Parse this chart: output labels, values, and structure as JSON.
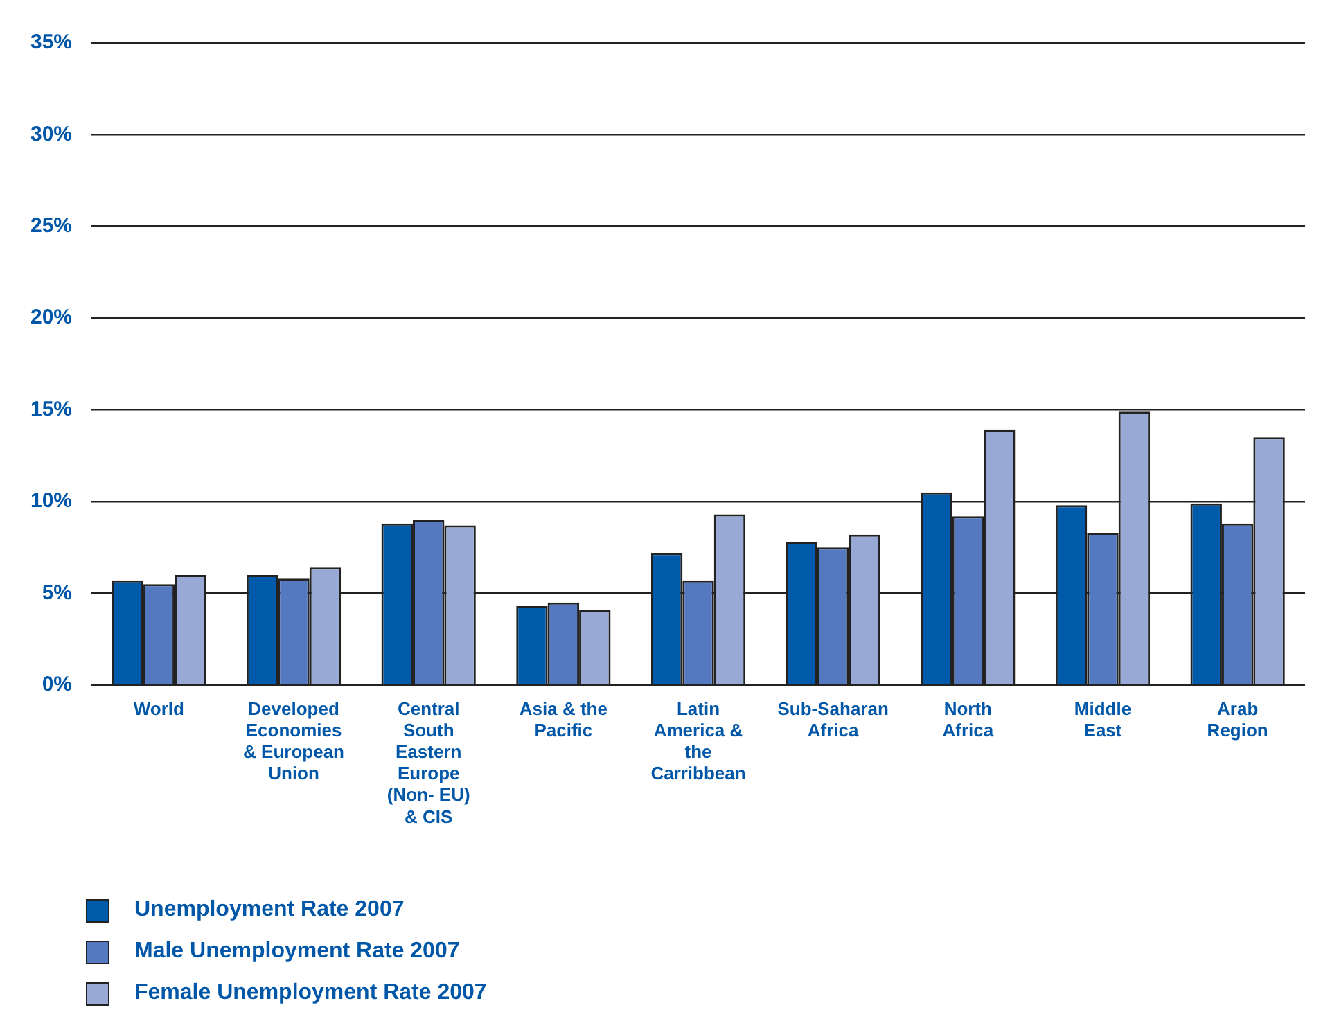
{
  "chart_data": {
    "type": "bar",
    "categories": [
      "World",
      "Developed Economies & European Union",
      "Central South Eastern Europe (Non- EU) & CIS",
      "Asia & the Pacific",
      "Latin America & the Carribbean",
      "Sub-Saharan Africa",
      "North Africa",
      "Middle East",
      "Arab Region"
    ],
    "series": [
      {
        "name": "Unemployment Rate 2007",
        "color": "#005aaa",
        "values": [
          5.7,
          6.0,
          8.8,
          4.3,
          7.2,
          7.8,
          10.5,
          9.8,
          9.9
        ]
      },
      {
        "name": "Male Unemployment Rate 2007",
        "color": "#5579c0",
        "values": [
          5.5,
          5.8,
          9.0,
          4.5,
          5.7,
          7.5,
          9.2,
          8.3,
          8.8
        ]
      },
      {
        "name": "Female Unemployment Rate 2007",
        "color": "#98a9d5",
        "values": [
          6.0,
          6.4,
          8.7,
          4.1,
          9.3,
          8.2,
          13.9,
          14.9,
          13.5
        ]
      }
    ],
    "ylim": [
      0,
      35
    ],
    "yticks": [
      {
        "value": 0,
        "label": "0%"
      },
      {
        "value": 5,
        "label": "5%"
      },
      {
        "value": 10,
        "label": "10%"
      },
      {
        "value": 15,
        "label": "15%"
      },
      {
        "value": 20,
        "label": "20%"
      },
      {
        "value": 25,
        "label": "25%"
      },
      {
        "value": 30,
        "label": "30%"
      },
      {
        "value": 35,
        "label": "35%"
      }
    ],
    "grid": "y",
    "legend": "bottom left"
  }
}
